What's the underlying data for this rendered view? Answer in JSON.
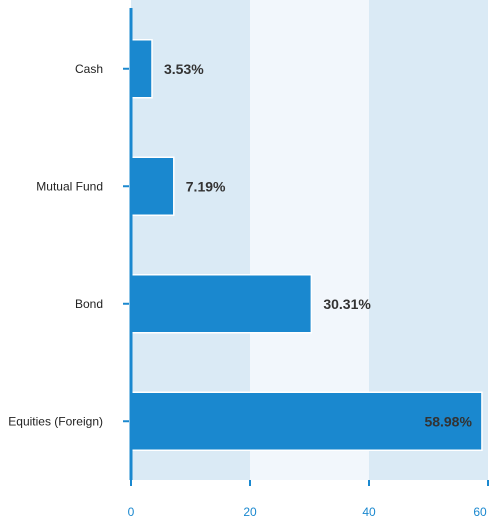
{
  "colors": {
    "bar": "#1a88cf",
    "bar_stroke": "#ffffff",
    "band_dark": "#daeaf5",
    "band_light": "#f2f7fc",
    "axis": "#1a88cf",
    "category_text": "#222222",
    "tick_text": "#1a88cf",
    "data_label_text": "#333333"
  },
  "chart_data": {
    "type": "bar",
    "orientation": "horizontal",
    "categories": [
      "Cash",
      "Mutual Fund",
      "Bond",
      "Equities (Foreign)"
    ],
    "values": [
      3.53,
      7.19,
      30.31,
      58.98
    ],
    "value_labels": [
      "3.53%",
      "7.19%",
      "30.31%",
      "58.98%"
    ],
    "xlim": [
      0,
      60
    ],
    "x_ticks": [
      0,
      20,
      40,
      60
    ],
    "x_tick_labels": [
      "0",
      "20",
      "40",
      "60"
    ],
    "grid": "alternating vertical bands",
    "legend": "none",
    "title": "",
    "xlabel": "",
    "ylabel": ""
  }
}
